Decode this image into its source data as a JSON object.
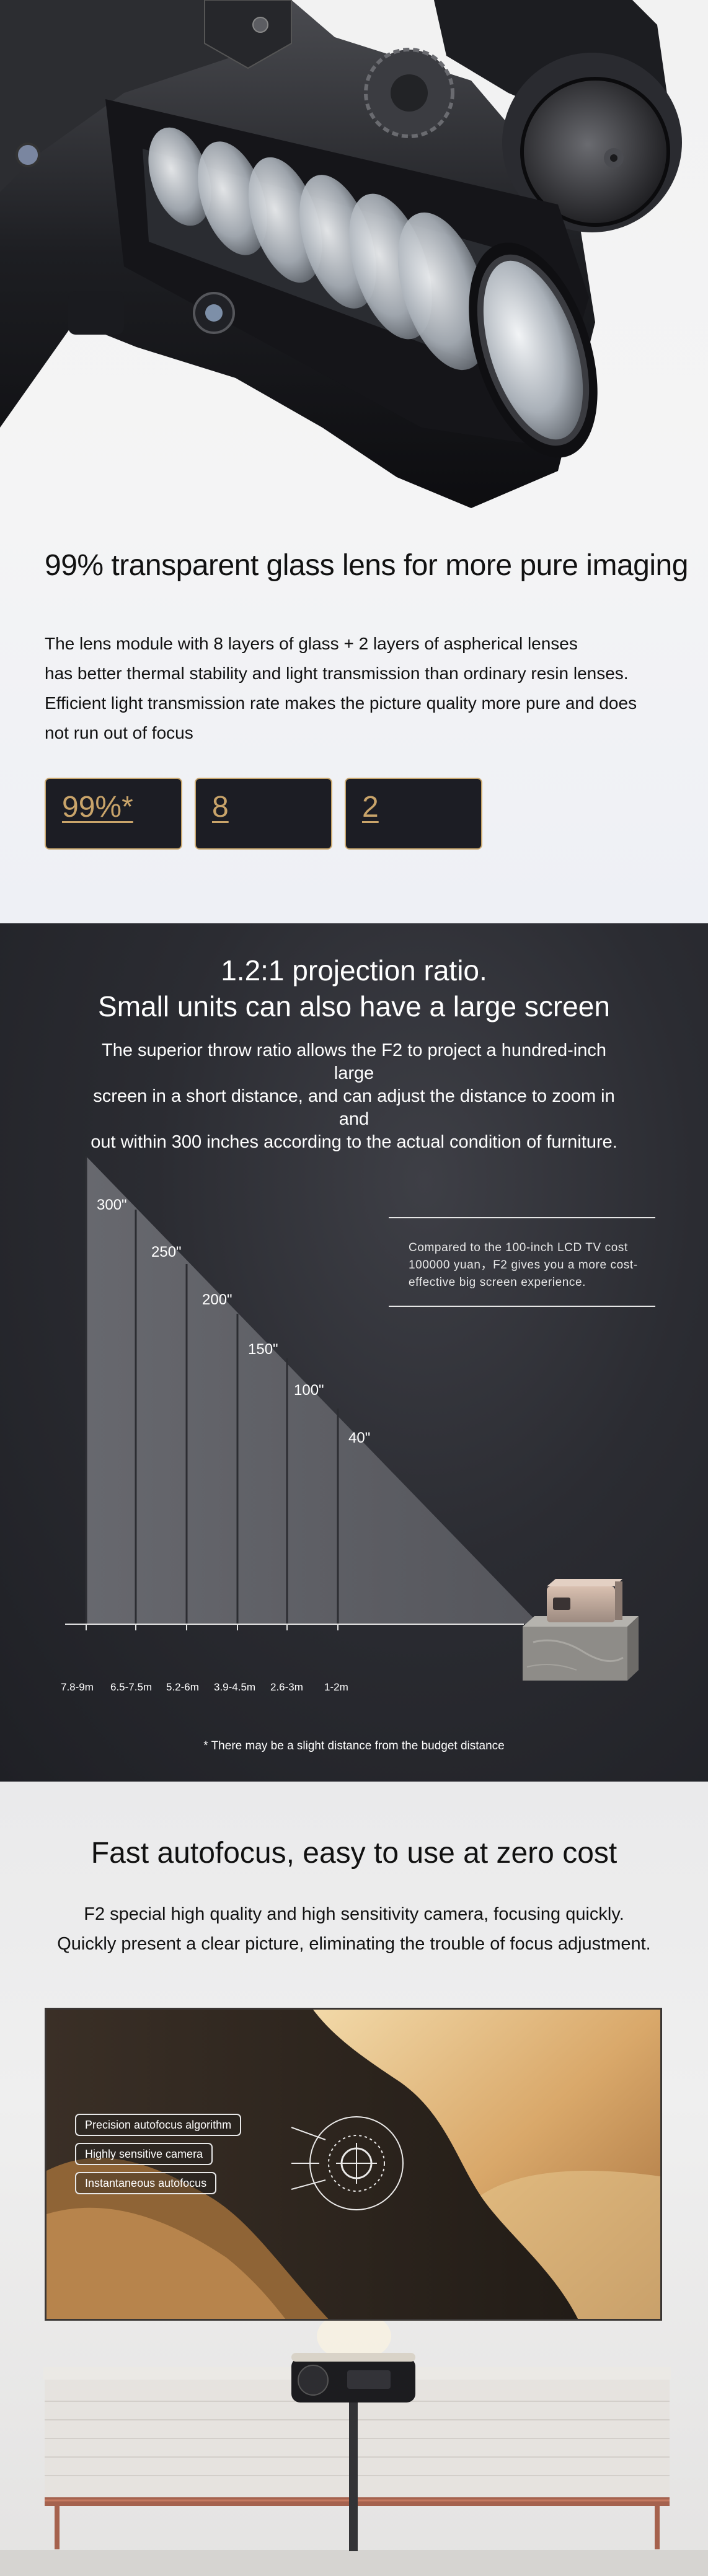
{
  "lens_section": {
    "title": "99% transparent glass lens for more pure imaging",
    "description_lines": [
      "The lens module with 8 layers of glass + 2 layers of aspherical lenses",
      "has better thermal stability and light transmission than ordinary resin lenses.",
      "Efficient light transmission rate makes the picture quality more pure and does",
      "not run out of focus"
    ],
    "stats": [
      "99%*",
      "8",
      "2"
    ],
    "accent_color": "#c9a46a"
  },
  "ratio_section": {
    "title_line1": "1.2:1 projection ratio.",
    "title_line2": "Small units can also have a large screen",
    "description_lines": [
      "The superior throw ratio allows the F2 to project a hundred-inch large",
      "screen in a short distance, and can adjust the distance to zoom in and",
      "out within 300 inches according to the actual condition of furniture."
    ],
    "screen_sizes": [
      "300\"",
      "250\"",
      "200\"",
      "150\"",
      "100\"",
      "40\""
    ],
    "distances": [
      "7.8-9m",
      "6.5-7.5m",
      "5.2-6m",
      "3.9-4.5m",
      "2.6-3m",
      "1-2m"
    ],
    "comparison_note": "Compared to the 100-inch LCD TV cost 100000 yuan，F2 gives you a more cost-effective big screen experience.",
    "footnote": "* There may be a slight distance from the budget distance"
  },
  "autofocus_section": {
    "title": "Fast autofocus, easy to use at zero cost",
    "description_lines": [
      "F2 special high quality and high sensitivity camera, focusing quickly.",
      "Quickly present a clear picture, eliminating the trouble of focus adjustment."
    ],
    "features": [
      "Precision autofocus algorithm",
      "Highly sensitive camera",
      "Instantaneous autofocus"
    ]
  }
}
